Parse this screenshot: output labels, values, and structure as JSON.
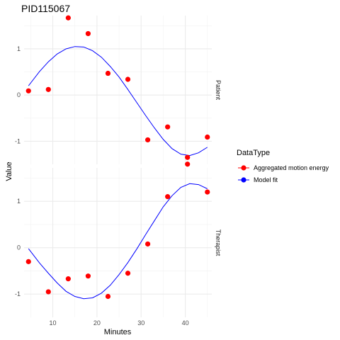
{
  "chart_data": {
    "type": "scatter",
    "title": "PID115067",
    "xlabel": "Minutes",
    "ylabel": "Value",
    "xlim": [
      3.5,
      46
    ],
    "x_ticks": [
      10,
      20,
      30,
      40
    ],
    "legend": {
      "title": "DataType",
      "position": "right",
      "entries": [
        {
          "label": "Aggregated motion energy",
          "color": "#ff0000"
        },
        {
          "label": "Model fit",
          "color": "#0000ff"
        }
      ]
    },
    "panels": [
      {
        "strip_label": "Patient",
        "ylim": [
          -1.5,
          1.72
        ],
        "y_ticks": [
          -1,
          0,
          1
        ],
        "points": {
          "series": "Aggregated motion energy",
          "x": [
            4.5,
            9,
            13.5,
            18,
            22.5,
            27,
            31.5,
            36,
            40.5,
            45
          ],
          "y": [
            0.09,
            0.12,
            1.67,
            1.33,
            0.47,
            0.34,
            -0.97,
            -0.69,
            -1.35,
            -0.91
          ]
        },
        "fit": {
          "series": "Model fit",
          "x": [
            4.5,
            7,
            9,
            11,
            13,
            15,
            17,
            19,
            21,
            23,
            25,
            27,
            29,
            31,
            33,
            35,
            37,
            39,
            41,
            43,
            45
          ],
          "y": [
            0.2,
            0.51,
            0.72,
            0.89,
            1.0,
            1.05,
            1.04,
            0.96,
            0.82,
            0.62,
            0.39,
            0.12,
            -0.16,
            -0.44,
            -0.71,
            -0.96,
            -1.16,
            -1.28,
            -1.31,
            -1.25,
            -1.13
          ]
        }
      },
      {
        "strip_label": "Therapist",
        "ylim": [
          -1.5,
          1.72
        ],
        "y_ticks": [
          -1,
          0,
          1
        ],
        "points": {
          "series": "Aggregated motion energy",
          "x": [
            4.5,
            9,
            13.5,
            18,
            22.5,
            27,
            31.5,
            36,
            40.5,
            45
          ],
          "y": [
            -0.3,
            -0.95,
            -0.67,
            -0.61,
            -1.05,
            -0.55,
            0.08,
            1.1,
            1.8,
            1.2
          ]
        },
        "fit": {
          "series": "Model fit",
          "x": [
            4.5,
            7,
            9,
            11,
            13,
            15,
            17,
            19,
            21,
            23,
            25,
            27,
            29,
            31,
            33,
            35,
            37,
            39,
            41,
            43,
            45
          ],
          "y": [
            -0.02,
            -0.33,
            -0.55,
            -0.76,
            -0.94,
            -1.05,
            -1.1,
            -1.08,
            -0.98,
            -0.81,
            -0.58,
            -0.32,
            -0.03,
            0.28,
            0.58,
            0.88,
            1.12,
            1.3,
            1.38,
            1.36,
            1.27
          ]
        }
      }
    ]
  }
}
